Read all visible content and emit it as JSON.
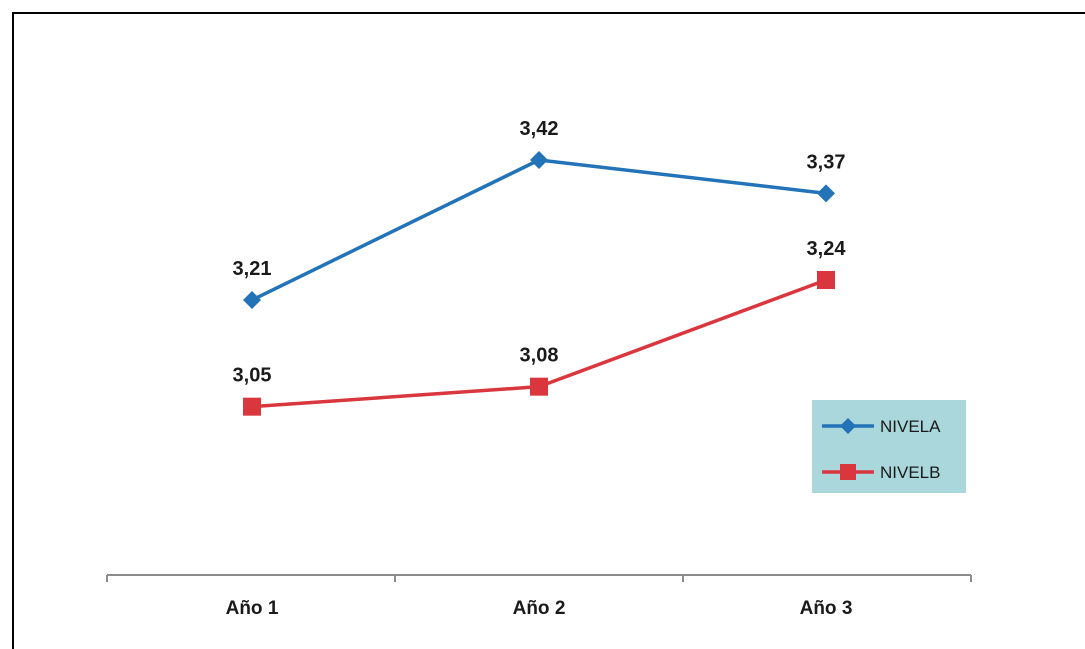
{
  "chart_data": {
    "type": "line",
    "categories": [
      "Año 1",
      "Año 2",
      "Año 3"
    ],
    "series": [
      {
        "name": "NIVELA",
        "values": [
          3.21,
          3.42,
          3.37
        ],
        "labels": [
          "3,21",
          "3,42",
          "3,37"
        ],
        "color": "#2273B8",
        "marker": "diamond"
      },
      {
        "name": "NIVELB",
        "values": [
          3.05,
          3.08,
          3.24
        ],
        "labels": [
          "3,05",
          "3,08",
          "3,24"
        ],
        "color": "#D9363E",
        "marker": "square"
      }
    ],
    "title": "",
    "xlabel": "",
    "ylabel": "",
    "grid": false,
    "legend": {
      "position": "right",
      "background": "#A9D7DB"
    }
  }
}
